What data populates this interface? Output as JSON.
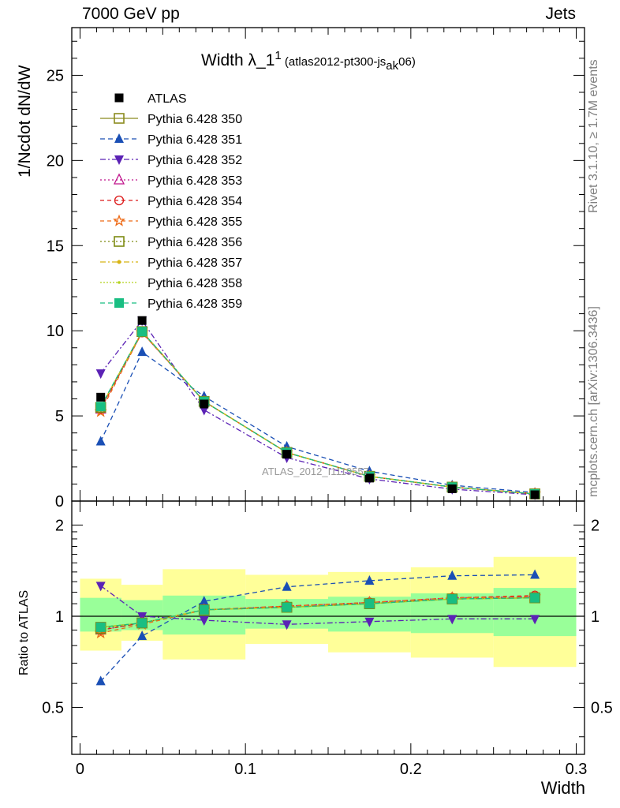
{
  "header": {
    "left": "7000 GeV pp",
    "right": "Jets"
  },
  "side": {
    "top": "Rivet 3.1.10, ≥ 1.7M events",
    "bottom": "mcplots.cern.ch [arXiv:1306.3436]"
  },
  "title": {
    "main": "Width λ_1",
    "sup": "1",
    "paren_open": " (atlas2012-pt300-js",
    "sub": "ak",
    "paren_close": "06)"
  },
  "watermark": "ATLAS_2012_I1119557",
  "axes": {
    "ylabel_top": "1/Ncdot dN/dW",
    "ylabel_bottom": "Ratio to ATLAS",
    "xlabel": "Width",
    "x_ticks": [
      "0",
      "0.1",
      "0.2",
      "0.3"
    ],
    "y_ticks_top": [
      "0",
      "5",
      "10",
      "15",
      "20",
      "25"
    ],
    "y_ticks_bottom": [
      "0.5",
      "1",
      "2"
    ]
  },
  "colors": {
    "data": "#000000",
    "band_inner": "#99ff99",
    "band_outer": "#ffff99"
  },
  "chart_data": {
    "type": "line",
    "x": [
      0.0125,
      0.0375,
      0.075,
      0.125,
      0.175,
      0.225,
      0.275
    ],
    "x_edges": [
      0.0,
      0.025,
      0.05,
      0.1,
      0.15,
      0.2,
      0.25,
      0.3
    ],
    "xlim": [
      -0.005,
      0.305
    ],
    "ylim": [
      0,
      27.8
    ],
    "ratio_ylim": [
      0.35,
      2.4
    ],
    "ratio_log": true,
    "data": {
      "name": "ATLAS",
      "values": [
        6.1,
        10.6,
        5.7,
        2.75,
        1.35,
        0.72,
        0.37
      ]
    },
    "band_inner": [
      [
        0.89,
        1.15
      ],
      [
        0.9,
        1.13
      ],
      [
        0.87,
        1.17
      ],
      [
        0.91,
        1.14
      ],
      [
        0.89,
        1.16
      ],
      [
        0.88,
        1.19
      ],
      [
        0.86,
        1.24
      ]
    ],
    "band_outer": [
      [
        0.77,
        1.33
      ],
      [
        0.83,
        1.27
      ],
      [
        0.72,
        1.43
      ],
      [
        0.81,
        1.37
      ],
      [
        0.76,
        1.4
      ],
      [
        0.73,
        1.45
      ],
      [
        0.68,
        1.57
      ]
    ],
    "series": [
      {
        "name": "Pythia 6.428 350",
        "color": "#8b8b1e",
        "marker": "square-open",
        "dash": "",
        "values": [
          5.5,
          9.95,
          5.85,
          2.85,
          1.45,
          0.82,
          0.42
        ],
        "ratio": [
          0.92,
          0.95,
          1.05,
          1.07,
          1.1,
          1.14,
          1.15
        ]
      },
      {
        "name": "Pythia 6.428 351",
        "color": "#1a4fb5",
        "marker": "triangle-up",
        "dash": "6,4",
        "values": [
          3.5,
          8.75,
          6.15,
          3.2,
          1.75,
          0.93,
          0.5
        ],
        "ratio": [
          0.61,
          0.86,
          1.12,
          1.25,
          1.31,
          1.36,
          1.37
        ]
      },
      {
        "name": "Pythia 6.428 352",
        "color": "#5b22b5",
        "marker": "triangle-down",
        "dash": "7,3,2,3",
        "values": [
          7.5,
          10.6,
          5.35,
          2.55,
          1.3,
          0.7,
          0.37
        ],
        "ratio": [
          1.26,
          1.0,
          0.97,
          0.94,
          0.96,
          0.98,
          0.98
        ]
      },
      {
        "name": "Pythia 6.428 353",
        "color": "#c0148c",
        "marker": "triangle-up-open",
        "dash": "2,3",
        "values": [
          5.4,
          9.9,
          5.85,
          2.85,
          1.45,
          0.82,
          0.42
        ],
        "ratio": [
          0.9,
          0.95,
          1.05,
          1.08,
          1.11,
          1.15,
          1.16
        ]
      },
      {
        "name": "Pythia 6.428 354",
        "color": "#dd1a1a",
        "marker": "circle-open",
        "dash": "5,4",
        "values": [
          5.4,
          9.9,
          5.85,
          2.85,
          1.45,
          0.82,
          0.43
        ],
        "ratio": [
          0.9,
          0.95,
          1.05,
          1.08,
          1.11,
          1.15,
          1.17
        ]
      },
      {
        "name": "Pythia 6.428 355",
        "color": "#ee6a16",
        "marker": "star-open",
        "dash": "5,4",
        "values": [
          5.25,
          9.9,
          5.85,
          2.85,
          1.45,
          0.82,
          0.43
        ],
        "ratio": [
          0.88,
          0.94,
          1.05,
          1.08,
          1.11,
          1.15,
          1.16
        ]
      },
      {
        "name": "Pythia 6.428 356",
        "color": "#7d8a12",
        "marker": "square-open",
        "dash": "2,3",
        "values": [
          5.5,
          9.95,
          5.85,
          2.85,
          1.45,
          0.82,
          0.42
        ],
        "ratio": [
          0.91,
          0.95,
          1.05,
          1.07,
          1.1,
          1.14,
          1.15
        ]
      },
      {
        "name": "Pythia 6.428 357",
        "color": "#d8b414",
        "marker": "dot",
        "dash": "7,3,2,3",
        "values": [
          5.5,
          9.95,
          5.85,
          2.85,
          1.45,
          0.82,
          0.42
        ],
        "ratio": [
          0.92,
          0.95,
          1.05,
          1.07,
          1.1,
          1.14,
          1.15
        ]
      },
      {
        "name": "Pythia 6.428 358",
        "color": "#b4d21e",
        "marker": "dot-small",
        "dash": "2,2",
        "values": [
          5.5,
          9.95,
          5.85,
          2.85,
          1.45,
          0.82,
          0.42
        ],
        "ratio": [
          0.92,
          0.95,
          1.05,
          1.07,
          1.1,
          1.14,
          1.15
        ]
      },
      {
        "name": "Pythia 6.428 359",
        "color": "#19be82",
        "marker": "square",
        "dash": "6,4",
        "values": [
          5.55,
          9.95,
          5.85,
          2.85,
          1.45,
          0.82,
          0.42
        ],
        "ratio": [
          0.92,
          0.95,
          1.05,
          1.07,
          1.1,
          1.14,
          1.15
        ]
      }
    ]
  }
}
